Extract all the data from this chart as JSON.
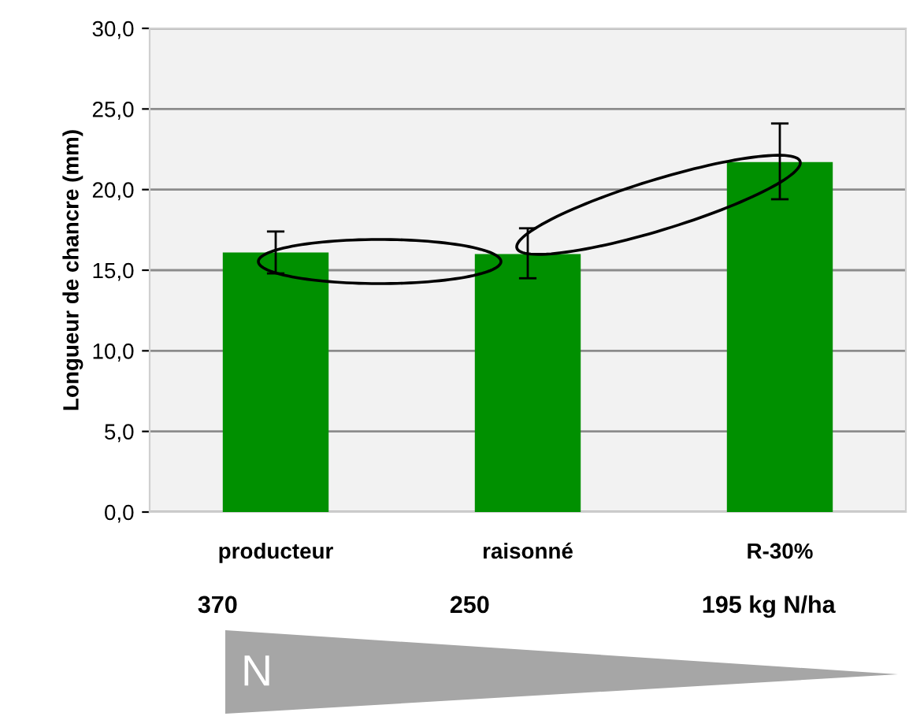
{
  "chart_data": {
    "type": "bar",
    "ylabel": "Longueur de chancre (mm)",
    "categories": [
      "producteur",
      "raisonné",
      "R-30%"
    ],
    "values": [
      16.1,
      16.0,
      21.7
    ],
    "color": "#009000",
    "errors": [
      [
        14.8,
        17.4
      ],
      [
        14.5,
        17.6
      ],
      [
        19.4,
        24.1
      ]
    ],
    "ylim": [
      0,
      30
    ],
    "yticks": [
      {
        "value": 0,
        "label": "0,0"
      },
      {
        "value": 5,
        "label": "5,0"
      },
      {
        "value": 10,
        "label": "10,0"
      },
      {
        "value": 15,
        "label": "15,0"
      },
      {
        "value": 20,
        "label": "20,0"
      },
      {
        "value": 25,
        "label": "25,0"
      },
      {
        "value": 30,
        "label": "30,0"
      }
    ],
    "grid": "y",
    "annotations": [
      "370",
      "250",
      "195 kg N/ha",
      "N"
    ]
  }
}
